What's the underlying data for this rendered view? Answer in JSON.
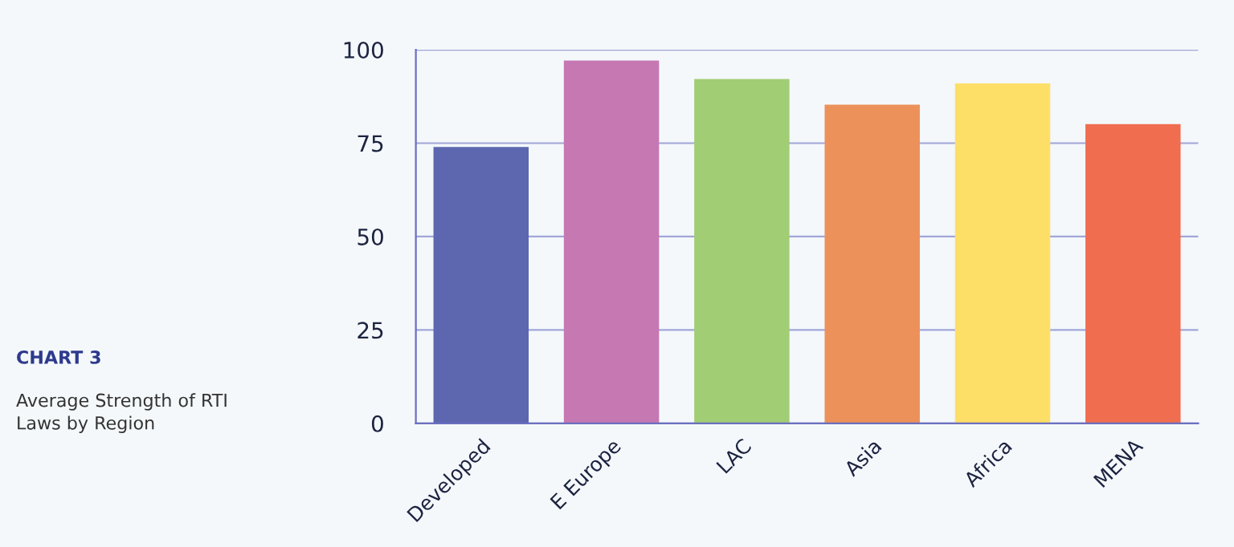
{
  "chart_data": {
    "type": "bar",
    "title": "CHART 3",
    "subtitle": "Average Strength of RTI\nLaws by Region",
    "categories": [
      "Developed",
      "E Europe",
      "LAC",
      "Asia",
      "Africa",
      "MENA"
    ],
    "values": [
      74.0,
      97.1,
      92.2,
      85.3,
      91.0,
      80.1
    ],
    "colors": [
      "#5c67b0",
      "#c678b3",
      "#a1cd74",
      "#ec915a",
      "#fddf68",
      "#f06d4f"
    ],
    "ylim": [
      0,
      100
    ],
    "yticks": [
      0,
      25,
      50,
      75,
      100
    ],
    "grid": "y"
  }
}
